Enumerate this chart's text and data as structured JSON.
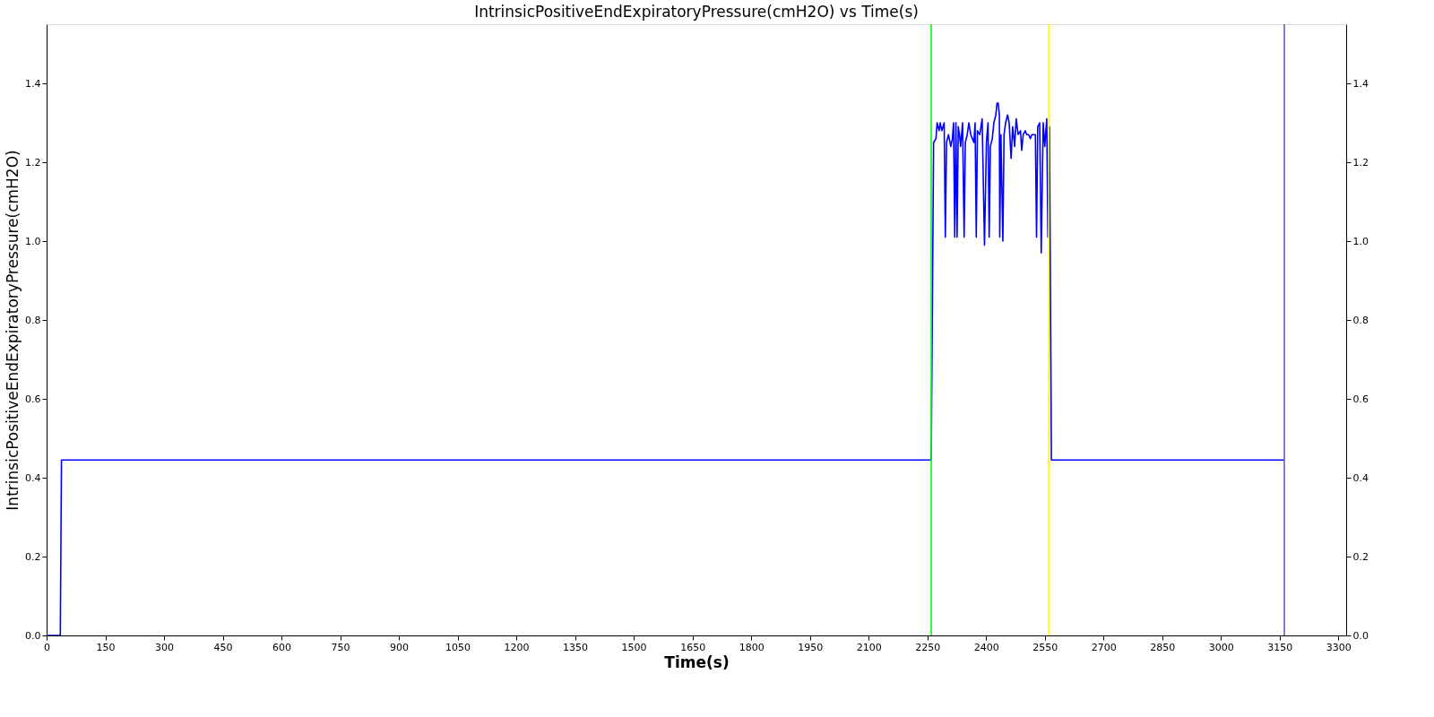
{
  "chart_data": {
    "type": "line",
    "title": "IntrinsicPositiveEndExpiratoryPressure(cmH2O) vs Time(s)",
    "xlabel": "Time(s)",
    "ylabel": "IntrinsicPositiveEndExpiratoryPressure(cmH2O)",
    "xlim": [
      0,
      3320
    ],
    "xticks": [
      0,
      150,
      300,
      450,
      600,
      750,
      900,
      1050,
      1200,
      1350,
      1500,
      1650,
      1800,
      1950,
      2100,
      2250,
      2400,
      2550,
      2700,
      2850,
      3000,
      3150,
      3300
    ],
    "ylim": [
      0,
      1.55
    ],
    "yticks": [
      {
        "value": 0,
        "label": "0.0"
      },
      0.2,
      0.4,
      0.6,
      0.8,
      {
        "value": 1,
        "label": "1.0"
      },
      1.2,
      1.4
    ],
    "y2lim": [
      0,
      1.55
    ],
    "y2ticks": [
      {
        "value": 0,
        "label": "0.0"
      },
      0.2,
      0.4,
      0.6,
      0.8,
      {
        "value": 1,
        "label": "1.0"
      },
      1.2,
      1.4
    ],
    "grid": false,
    "line_style": "solid",
    "marker": "none",
    "series": [
      {
        "color": "#0000ff",
        "x": [
          0,
          35,
          38,
          2260,
          2266,
          2272,
          2275,
          2280,
          2283,
          2287,
          2290,
          2293,
          2296,
          2299,
          2304,
          2310,
          2314,
          2317,
          2320,
          2323,
          2326,
          2329,
          2332,
          2335,
          2340,
          2344,
          2347,
          2352,
          2356,
          2361,
          2365,
          2369,
          2372,
          2375,
          2378,
          2384,
          2390,
          2396,
          2401,
          2405,
          2408,
          2411,
          2416,
          2420,
          2425,
          2428,
          2431,
          2434,
          2435,
          2438,
          2443,
          2446,
          2450,
          2455,
          2459,
          2464,
          2468,
          2473,
          2477,
          2482,
          2488,
          2491,
          2495,
          2500,
          2504,
          2509,
          2513,
          2517,
          2522,
          2526,
          2529,
          2532,
          2537,
          2541,
          2546,
          2550,
          2555,
          2558,
          2562,
          2567,
          3162
        ],
        "values": [
          0,
          0,
          0.445,
          0.445,
          1.25,
          1.26,
          1.3,
          1.28,
          1.3,
          1.28,
          1.29,
          1.3,
          1.01,
          1.25,
          1.27,
          1.24,
          1.26,
          1.3,
          1.01,
          1.3,
          1.01,
          1.29,
          1.27,
          1.24,
          1.3,
          1.01,
          1.25,
          1.27,
          1.3,
          1.27,
          1.26,
          1.25,
          1.3,
          1.01,
          1.28,
          1.27,
          1.31,
          0.99,
          1.25,
          1.3,
          1.01,
          1.24,
          1.26,
          1.3,
          1.32,
          1.35,
          1.35,
          1.32,
          1.01,
          1.27,
          1.0,
          1.27,
          1.3,
          1.32,
          1.3,
          1.21,
          1.29,
          1.24,
          1.31,
          1.27,
          1.28,
          1.23,
          1.27,
          1.28,
          1.27,
          1.27,
          1.26,
          1.27,
          1.27,
          1.27,
          1.01,
          1.29,
          1.3,
          0.97,
          1.3,
          1.24,
          1.31,
          1.01,
          1.29,
          0.445,
          0.445
        ]
      }
    ],
    "ref_lines": [
      {
        "axis": "x",
        "value": 2260,
        "color": "#00ff00"
      },
      {
        "axis": "x",
        "value": 2560,
        "color": "#ffff00"
      },
      {
        "axis": "x",
        "value": 3162,
        "color": "#6a5acd"
      }
    ]
  }
}
